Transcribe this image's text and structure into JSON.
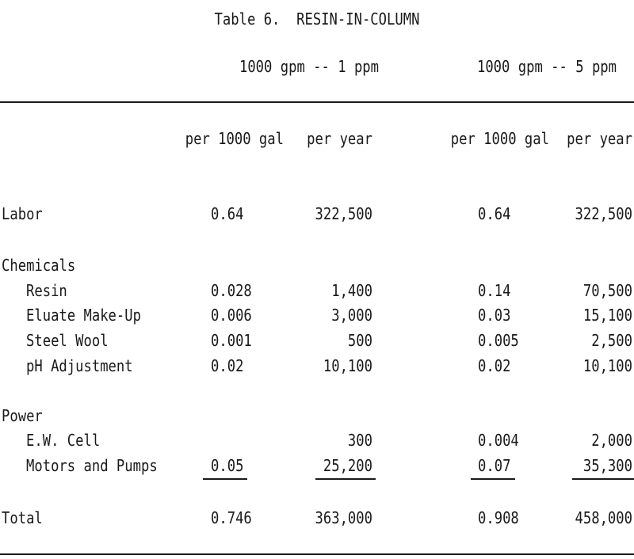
{
  "title": "Table 6.  RESIN-IN-COLUMN",
  "groups": [
    {
      "label": "1000 gpm -- 1 ppm"
    },
    {
      "label": "1000 gpm -- 5 ppm"
    }
  ],
  "columns": [
    "per 1000 gal",
    "per year",
    "per 1000 gal",
    "per year"
  ],
  "rows": {
    "labor": {
      "label": "Labor",
      "values": [
        "0.64",
        "322,500",
        "0.64",
        "322,500"
      ]
    },
    "chemicals": {
      "label": "Chemicals"
    },
    "resin": {
      "label": "Resin",
      "values": [
        "0.028",
        "1,400",
        "0.14",
        "70,500"
      ]
    },
    "eluate": {
      "label": "Eluate Make-Up",
      "values": [
        "0.006",
        "3,000",
        "0.03",
        "15,100"
      ]
    },
    "steel_wool": {
      "label": "Steel Wool",
      "values": [
        "0.001",
        "500",
        "0.005",
        "2,500"
      ]
    },
    "ph": {
      "label": "pH Adjustment",
      "values": [
        "0.02",
        "10,100",
        "0.02",
        "10,100"
      ]
    },
    "power": {
      "label": "Power"
    },
    "ew_cell": {
      "label": "E.W. Cell",
      "values": [
        "",
        "300",
        "0.004",
        "2,000"
      ]
    },
    "motors": {
      "label": "Motors and Pumps",
      "values": [
        "0.05",
        "25,200",
        "0.07",
        "35,300"
      ]
    },
    "total": {
      "label": "Total",
      "values": [
        "0.746",
        "363,000",
        "0.908",
        "458,000"
      ]
    }
  }
}
